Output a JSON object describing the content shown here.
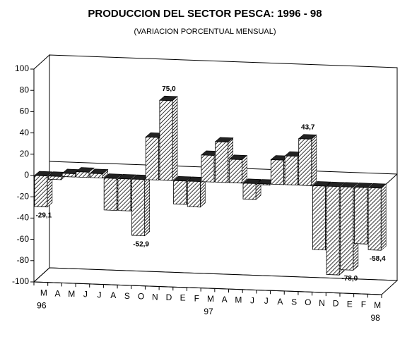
{
  "chart_data": {
    "type": "bar3d",
    "title": "PRODUCCION DEL SECTOR PESCA: 1996 - 98",
    "subtitle": "(VARIACION PORCENTUAL MENSUAL)",
    "categories": [
      "M",
      "A",
      "M",
      "J",
      "J",
      "A",
      "S",
      "O",
      "N",
      "D",
      "E",
      "F",
      "M",
      "A",
      "M",
      "J",
      "J",
      "A",
      "S",
      "O",
      "N",
      "D",
      "E",
      "F",
      "M"
    ],
    "category_years": [
      "96",
      null,
      null,
      null,
      null,
      null,
      null,
      null,
      null,
      null,
      null,
      null,
      "97",
      null,
      null,
      null,
      null,
      null,
      null,
      null,
      null,
      null,
      null,
      null,
      "98"
    ],
    "values": [
      -29.1,
      -3,
      3,
      5,
      4,
      -30,
      -30,
      -52.9,
      40,
      75.0,
      -22,
      -24,
      25,
      38,
      22,
      -15,
      -1,
      23,
      27,
      43.7,
      -60,
      -83,
      -78.0,
      -53,
      -58.4
    ],
    "value_labels": [
      "-29,1",
      null,
      null,
      null,
      null,
      null,
      null,
      "-52,9",
      null,
      "75,0",
      null,
      null,
      null,
      null,
      null,
      null,
      null,
      null,
      null,
      "43,7",
      null,
      null,
      "-78,0",
      null,
      "-58,4"
    ],
    "color": "#ffffff",
    "ylim": [
      -100,
      100
    ],
    "yticks": [
      -100,
      -80,
      -60,
      -40,
      -20,
      0,
      20,
      40,
      60,
      80,
      100
    ]
  }
}
